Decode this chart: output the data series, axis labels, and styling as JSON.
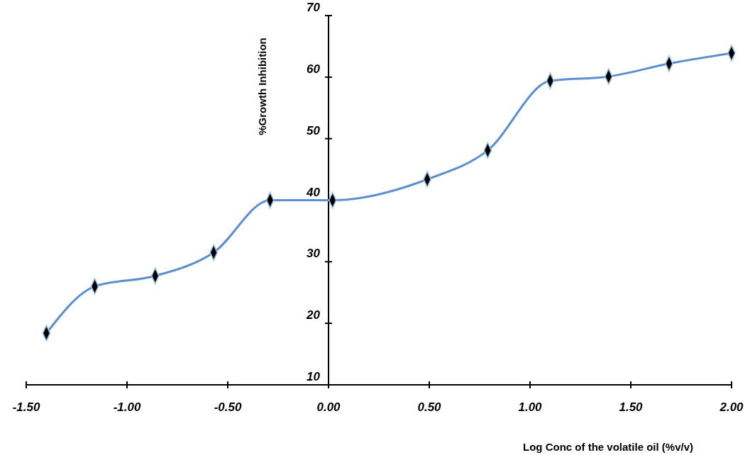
{
  "chart_data": {
    "type": "line",
    "xlabel": "Log Conc of the volatile oil (%v/v)",
    "ylabel": "%Growth Inhibition",
    "x": [
      -1.4,
      -1.16,
      -0.86,
      -0.57,
      -0.29,
      0.02,
      0.49,
      0.79,
      1.1,
      1.39,
      1.69,
      2.0
    ],
    "series": [
      {
        "color": "#5b8fd0",
        "values": [
          18.4,
          26.0,
          27.7,
          31.5,
          40.0,
          40.0,
          43.4,
          48.1,
          59.4,
          60.1,
          62.2,
          63.9
        ]
      }
    ],
    "xlim": [
      -1.5,
      2.0
    ],
    "xticks": [
      {
        "value": -1.5,
        "label": "-1.50"
      },
      {
        "value": -1,
        "label": "-1.00"
      },
      {
        "value": -0.5,
        "label": "-0.50"
      },
      {
        "value": 0,
        "label": "0.00"
      },
      {
        "value": 0.5,
        "label": "0.50"
      },
      {
        "value": 1,
        "label": "1.00"
      },
      {
        "value": 1.5,
        "label": "1.50"
      },
      {
        "value": 2,
        "label": "2.00"
      }
    ],
    "ylim": [
      10,
      70
    ],
    "yticks": [
      10,
      20,
      30,
      40,
      50,
      60,
      70
    ],
    "marker": "diamond",
    "line_style": "solid",
    "grid": false
  }
}
